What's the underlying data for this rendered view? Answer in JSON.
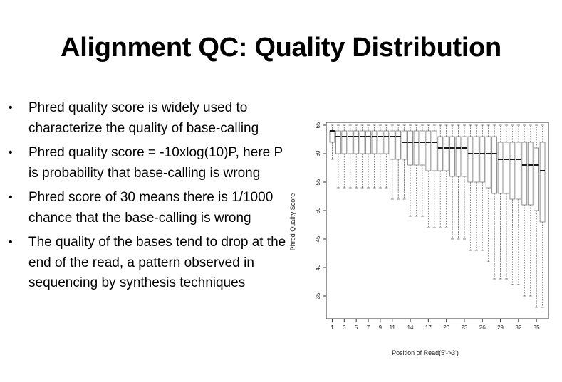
{
  "slide": {
    "title": "Alignment QC: Quality Distribution",
    "bullets": [
      "Phred quality score is widely used to characterize the quality of base-calling",
      "Phred quality score = -10xlog(10)P, here P is probability that base-calling is wrong",
      "Phred score of 30 means there is 1/1000 chance that the base-calling is wrong",
      "The quality of the bases tend to drop at the end of the read, a pattern observed in sequencing by synthesis techniques"
    ]
  },
  "chart_data": {
    "type": "boxplot",
    "xlabel": "Position of Read(5'->3')",
    "ylabel": "Phred Quality Score",
    "ylim": [
      31,
      65.5
    ],
    "yticks": [
      35,
      40,
      45,
      50,
      55,
      60,
      65
    ],
    "xlim": [
      0,
      37
    ],
    "xticks": [
      1,
      3,
      5,
      7,
      9,
      11,
      14,
      17,
      20,
      23,
      26,
      29,
      32,
      35
    ],
    "grid": false,
    "legend": "none",
    "positions": [
      1,
      2,
      3,
      4,
      5,
      6,
      7,
      8,
      9,
      10,
      11,
      12,
      13,
      14,
      15,
      16,
      17,
      18,
      19,
      20,
      21,
      22,
      23,
      24,
      25,
      26,
      27,
      28,
      29,
      30,
      31,
      32,
      33,
      34,
      35,
      36
    ],
    "q1": [
      62,
      60,
      60,
      60,
      60,
      60,
      60,
      60,
      60,
      60,
      59,
      59,
      59,
      58,
      58,
      58,
      57,
      57,
      57,
      57,
      56,
      56,
      56,
      55,
      55,
      55,
      54,
      53,
      53,
      53,
      52,
      52,
      51,
      51,
      50,
      48
    ],
    "median": [
      64,
      63,
      63,
      63,
      63,
      63,
      63,
      63,
      63,
      63,
      63,
      63,
      62,
      62,
      62,
      62,
      62,
      62,
      61,
      61,
      61,
      61,
      61,
      60,
      60,
      60,
      60,
      60,
      59,
      59,
      59,
      59,
      58,
      58,
      58,
      57
    ],
    "q3": [
      64,
      64,
      64,
      64,
      64,
      64,
      64,
      64,
      64,
      64,
      64,
      64,
      64,
      64,
      64,
      64,
      64,
      64,
      63,
      63,
      63,
      63,
      63,
      63,
      63,
      63,
      63,
      63,
      62,
      62,
      62,
      62,
      62,
      62,
      61,
      62
    ],
    "whisker_low": [
      59,
      54,
      54,
      54,
      54,
      54,
      54,
      54,
      54,
      54,
      52,
      52,
      52,
      49,
      49,
      49,
      47,
      47,
      47,
      47,
      45,
      45,
      45,
      43,
      43,
      43,
      41,
      38,
      38,
      38,
      37,
      37,
      35,
      35,
      33,
      33
    ],
    "whisker_high": [
      65,
      65,
      65,
      65,
      65,
      65,
      65,
      65,
      65,
      65,
      65,
      65,
      65,
      65,
      65,
      65,
      65,
      65,
      65,
      65,
      65,
      65,
      65,
      65,
      65,
      65,
      65,
      65,
      65,
      65,
      65,
      65,
      65,
      65,
      65,
      65
    ]
  },
  "colors": {
    "box_fill": "#ffffff",
    "box_stroke": "#777777",
    "median": "#000000",
    "whisker": "#666666",
    "axis": "#333333"
  }
}
